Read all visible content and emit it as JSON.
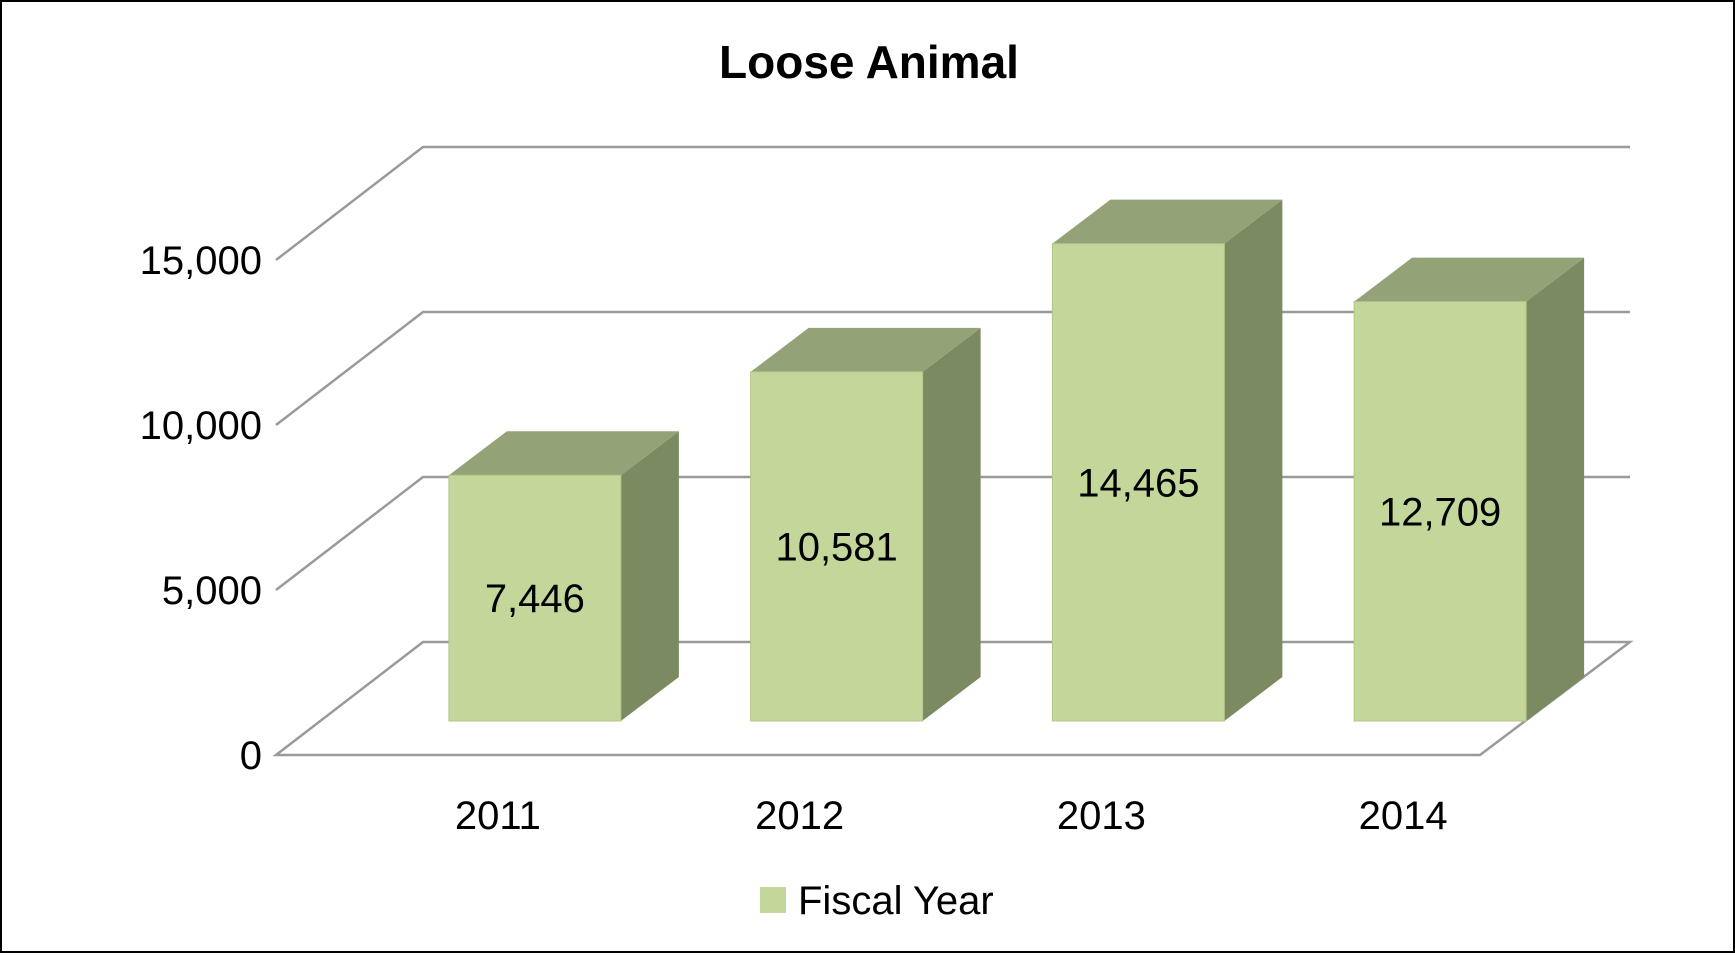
{
  "chart_data": {
    "type": "bar",
    "title": "Loose Animal",
    "categories": [
      "2011",
      "2012",
      "2013",
      "2014"
    ],
    "series": [
      {
        "name": "Fiscal Year",
        "values": [
          7446,
          10581,
          14465,
          12709
        ]
      }
    ],
    "data_labels": [
      "7,446",
      "10,581",
      "14,465",
      "12,709"
    ],
    "y_ticks": [
      0,
      5000,
      10000,
      15000
    ],
    "y_tick_labels": [
      "0",
      "5,000",
      "10,000",
      "15,000"
    ],
    "ylim": [
      0,
      18000
    ],
    "grid": true,
    "three_d": true,
    "legend_position": "bottom",
    "colors": {
      "bar_front": "#c4d79b",
      "bar_top": "#93a377",
      "bar_side": "#7c8a62",
      "grid": "#9a9a9a"
    }
  }
}
